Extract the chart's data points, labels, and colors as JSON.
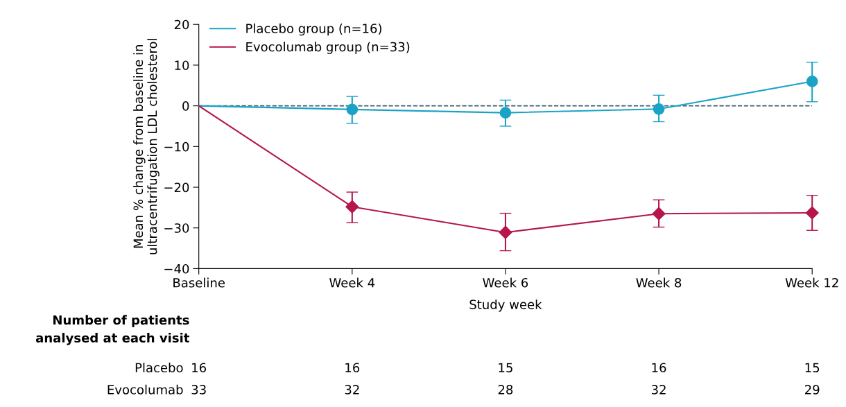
{
  "chart_data": {
    "type": "line",
    "xlabel": "Study week",
    "ylabel": "Mean % change from baseline in\nultracentrifugation LDL cholesterol",
    "categories": [
      "Baseline",
      "Week 4",
      "Week 6",
      "Week 8",
      "Week 12"
    ],
    "ylim": [
      -40,
      20
    ],
    "yticks": [
      -40,
      -30,
      -20,
      -10,
      0,
      10,
      20
    ],
    "series": [
      {
        "name": "Placebo group (n=16)",
        "color": "#1ba3c6",
        "marker": "circle",
        "values": [
          0,
          -0.9,
          -1.7,
          -0.8,
          6.0
        ],
        "errors": [
          null,
          [
            -4.3,
            2.3
          ],
          [
            -5.0,
            1.4
          ],
          [
            -3.9,
            2.6
          ],
          [
            1.0,
            10.7
          ]
        ]
      },
      {
        "name": "Evocolumab group (n=33)",
        "color": "#b5164b",
        "marker": "diamond",
        "values": [
          0,
          -24.8,
          -31.1,
          -26.5,
          -26.3
        ],
        "errors": [
          null,
          [
            -28.7,
            -21.2
          ],
          [
            -35.6,
            -26.4
          ],
          [
            -29.8,
            -23.1
          ],
          [
            -30.6,
            -22.0
          ]
        ]
      }
    ],
    "ref_lines": [
      {
        "axis": "y",
        "value": 0,
        "color": "#3d5a6c",
        "line_style": "dashed"
      }
    ],
    "legend": "top left",
    "grid": false,
    "annotations": [
      "Number of patients\nanalysed at each visit",
      "Placebo",
      "Evocolumab",
      "16",
      "16",
      "15",
      "16",
      "15",
      "33",
      "32",
      "28",
      "32",
      "29"
    ]
  }
}
